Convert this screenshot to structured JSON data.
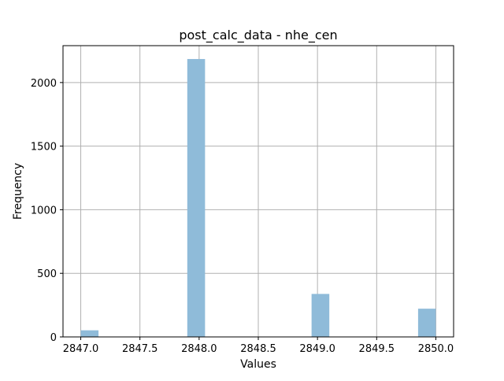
{
  "chart_data": {
    "type": "bar",
    "title": "post_calc_data - nhe_cen",
    "xlabel": "Values",
    "ylabel": "Frequency",
    "xlim": [
      2846.85,
      2850.15
    ],
    "ylim": [
      0,
      2290
    ],
    "x_ticks": [
      "2847.0",
      "2847.5",
      "2848.0",
      "2848.5",
      "2849.0",
      "2849.5",
      "2850.0"
    ],
    "y_ticks": [
      "0",
      "500",
      "1000",
      "1500",
      "2000"
    ],
    "grid": true,
    "bar_color": "#8fbbd9",
    "bins": [
      {
        "x0": 2847.0,
        "x1": 2847.15,
        "value": 52
      },
      {
        "x0": 2847.9,
        "x1": 2848.05,
        "value": 2185
      },
      {
        "x0": 2848.95,
        "x1": 2849.1,
        "value": 338
      },
      {
        "x0": 2849.85,
        "x1": 2850.0,
        "value": 222
      }
    ]
  }
}
